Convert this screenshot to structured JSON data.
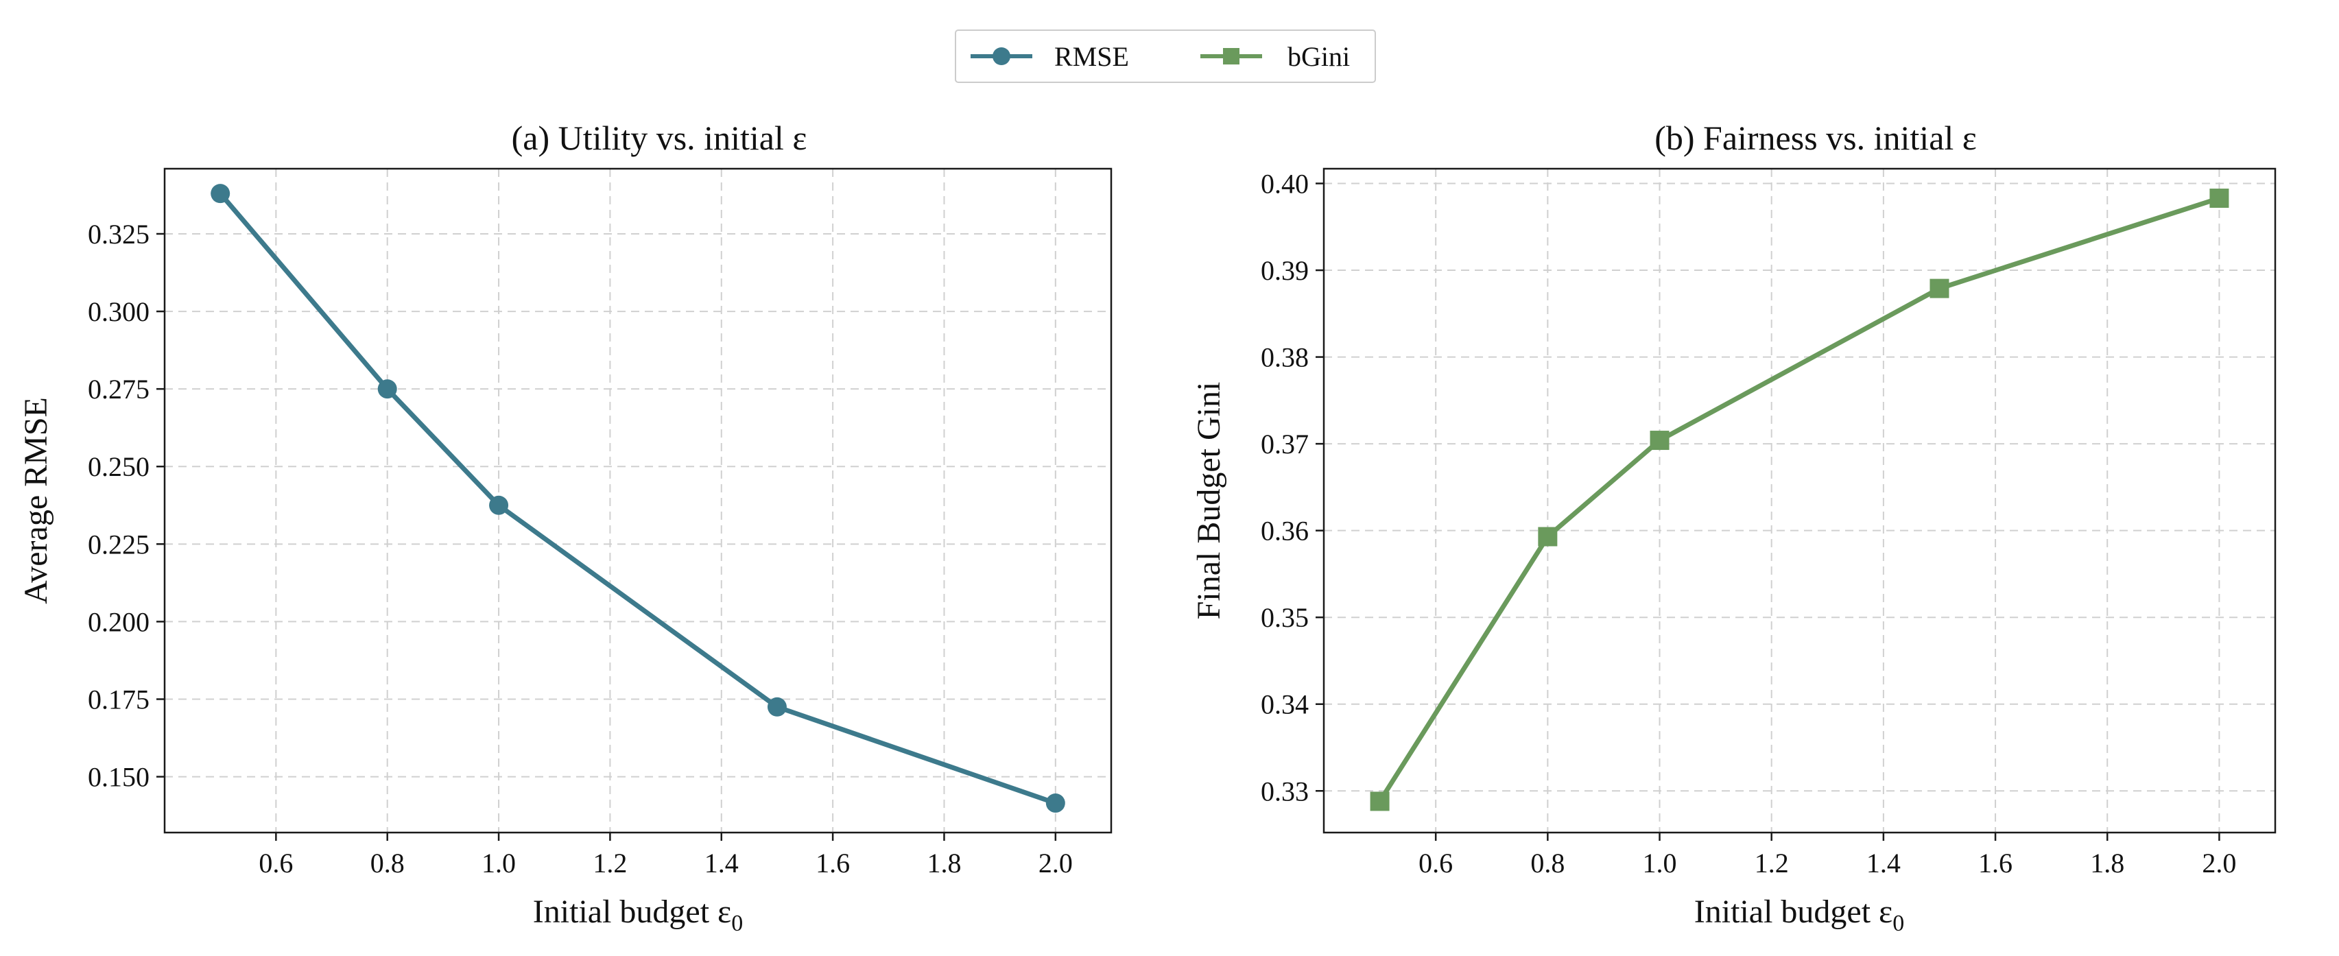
{
  "legend": {
    "entries": [
      {
        "name": "RMSE",
        "color": "#3d7a8c",
        "marker": "circle"
      },
      {
        "name": "bGini",
        "color": "#6a9a5c",
        "marker": "square"
      }
    ]
  },
  "chart_data": [
    {
      "type": "line",
      "title": "(a) Utility vs. initial ε",
      "xlabel": "Initial budget ε",
      "xlabel_sub": "0",
      "ylabel": "Average RMSE",
      "x": [
        0.5,
        0.8,
        1.0,
        1.5,
        2.0
      ],
      "series": [
        {
          "name": "RMSE",
          "color": "#3d7a8c",
          "marker": "circle",
          "values": [
            0.338,
            0.275,
            0.2375,
            0.1725,
            0.1415
          ]
        }
      ],
      "xlim": [
        0.4,
        2.1
      ],
      "ylim": [
        0.132,
        0.346
      ],
      "xticks": [
        0.6,
        0.8,
        1.0,
        1.2,
        1.4,
        1.6,
        1.8,
        2.0
      ],
      "xtick_labels": [
        "0.6",
        "0.8",
        "1.0",
        "1.2",
        "1.4",
        "1.6",
        "1.8",
        "2.0"
      ],
      "yticks": [
        0.15,
        0.175,
        0.2,
        0.225,
        0.25,
        0.275,
        0.3,
        0.325
      ],
      "ytick_labels": [
        "0.150",
        "0.175",
        "0.200",
        "0.225",
        "0.250",
        "0.275",
        "0.300",
        "0.325"
      ],
      "grid": true
    },
    {
      "type": "line",
      "title": "(b) Fairness vs. initial ε",
      "xlabel": "Initial budget ε",
      "xlabel_sub": "0",
      "ylabel": "Final Budget Gini",
      "x": [
        0.5,
        0.8,
        1.0,
        1.5,
        2.0
      ],
      "series": [
        {
          "name": "bGini",
          "color": "#6a9a5c",
          "marker": "square",
          "values": [
            0.3288,
            0.3593,
            0.3704,
            0.3879,
            0.3983
          ]
        }
      ],
      "xlim": [
        0.4,
        2.1
      ],
      "ylim": [
        0.3252,
        0.4017
      ],
      "xticks": [
        0.6,
        0.8,
        1.0,
        1.2,
        1.4,
        1.6,
        1.8,
        2.0
      ],
      "xtick_labels": [
        "0.6",
        "0.8",
        "1.0",
        "1.2",
        "1.4",
        "1.6",
        "1.8",
        "2.0"
      ],
      "yticks": [
        0.33,
        0.34,
        0.35,
        0.36,
        0.37,
        0.38,
        0.39,
        0.4
      ],
      "ytick_labels": [
        "0.33",
        "0.34",
        "0.35",
        "0.36",
        "0.37",
        "0.38",
        "0.39",
        "0.40"
      ],
      "grid": true
    }
  ]
}
